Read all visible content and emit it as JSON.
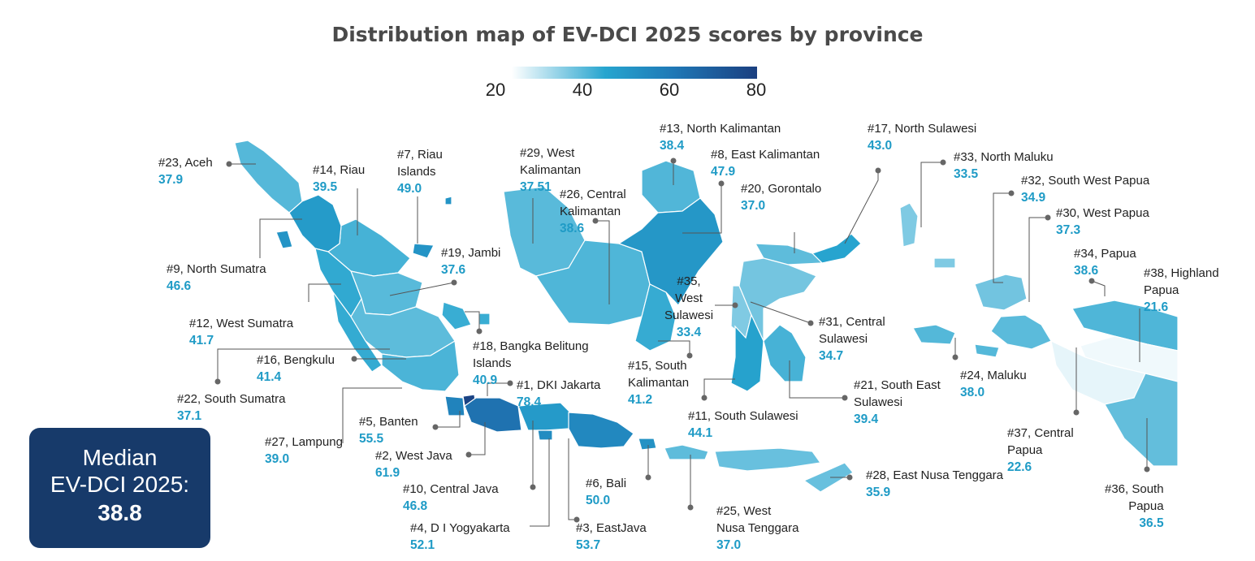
{
  "title": "Distribution map of EV-DCI 2025 scores by province",
  "scale": {
    "min": 20,
    "max": 80,
    "ticks": [
      "20",
      "40",
      "60",
      "80"
    ],
    "colors": [
      "#ffffff",
      "#27a5cf",
      "#1f78b6",
      "#1b3f80"
    ]
  },
  "median": {
    "line1": "Median",
    "line2": "EV-DCI 2025:",
    "value": "38.8"
  },
  "provinces": [
    {
      "id": "aceh",
      "name": "#23, Aceh",
      "score": "37.9"
    },
    {
      "id": "riau",
      "name": "#14, Riau",
      "score": "39.5"
    },
    {
      "id": "riau-islands",
      "name": "#7, Riau Islands",
      "score": "49.0"
    },
    {
      "id": "west-kalimantan",
      "name": "#29, West Kalimantan",
      "score": "37.51"
    },
    {
      "id": "central-kalimantan",
      "name": "#26, Central Kalimantan",
      "score": "38.6"
    },
    {
      "id": "north-kalimantan",
      "name": "#13, North Kalimantan",
      "score": "38.4"
    },
    {
      "id": "east-kalimantan",
      "name": "#8, East Kalimantan",
      "score": "47.9"
    },
    {
      "id": "north-sulawesi",
      "name": "#17, North Sulawesi",
      "score": "43.0"
    },
    {
      "id": "gorontalo",
      "name": "#20, Gorontalo",
      "score": "37.0"
    },
    {
      "id": "north-maluku",
      "name": "#33, North Maluku",
      "score": "33.5"
    },
    {
      "id": "south-west-papua",
      "name": "#32, South West Papua",
      "score": "34.9"
    },
    {
      "id": "west-papua",
      "name": "#30, West Papua",
      "score": "37.3"
    },
    {
      "id": "papua",
      "name": "#34, Papua",
      "score": "38.6"
    },
    {
      "id": "highland-papua",
      "name": "#38, Highland Papua",
      "score": "21.6"
    },
    {
      "id": "north-sumatra",
      "name": "#9, North Sumatra",
      "score": "46.6"
    },
    {
      "id": "jambi",
      "name": "#19, Jambi",
      "score": "37.6"
    },
    {
      "id": "west-sulawesi",
      "name": "#35, West Sulawesi",
      "score": "33.4"
    },
    {
      "id": "central-sulawesi",
      "name": "#31, Central Sulawesi",
      "score": "34.7"
    },
    {
      "id": "west-sumatra",
      "name": "#12, West Sumatra",
      "score": "41.7"
    },
    {
      "id": "bangka-belitung",
      "name": "#18, Bangka Belitung Islands",
      "score": "40.9"
    },
    {
      "id": "bengkulu",
      "name": "#16, Bengkulu",
      "score": "41.4"
    },
    {
      "id": "south-kalimantan",
      "name": "#15, South Kalimantan",
      "score": "41.2"
    },
    {
      "id": "south-sumatra",
      "name": "#22, South Sumatra",
      "score": "37.1"
    },
    {
      "id": "dki-jakarta",
      "name": "#1, DKI Jakarta",
      "score": "78.4"
    },
    {
      "id": "south-sulawesi",
      "name": "#11, South Sulawesi",
      "score": "44.1"
    },
    {
      "id": "south-east-sulawesi",
      "name": "#21, South East Sulawesi",
      "score": "39.4"
    },
    {
      "id": "maluku",
      "name": "#24, Maluku",
      "score": "38.0"
    },
    {
      "id": "banten",
      "name": "#5, Banten",
      "score": "55.5"
    },
    {
      "id": "lampung",
      "name": "#27, Lampung",
      "score": "39.0"
    },
    {
      "id": "west-java",
      "name": "#2, West Java",
      "score": "61.9"
    },
    {
      "id": "central-java",
      "name": "#10, Central Java",
      "score": "46.8"
    },
    {
      "id": "bali",
      "name": "#6, Bali",
      "score": "50.0"
    },
    {
      "id": "central-papua",
      "name": "#37, Central Papua",
      "score": "22.6"
    },
    {
      "id": "east-nusa-tenggara",
      "name": "#28, East Nusa Tenggara",
      "score": "35.9"
    },
    {
      "id": "yogyakarta",
      "name": "#4, D I Yogyakarta",
      "score": "52.1"
    },
    {
      "id": "east-java",
      "name": "#3, EastJava",
      "score": "53.7"
    },
    {
      "id": "west-nusa-tenggara",
      "name": "#25, West Nusa Tenggara",
      "score": "37.0"
    },
    {
      "id": "south-papua",
      "name": "#36, South Papua",
      "score": "36.5"
    }
  ]
}
